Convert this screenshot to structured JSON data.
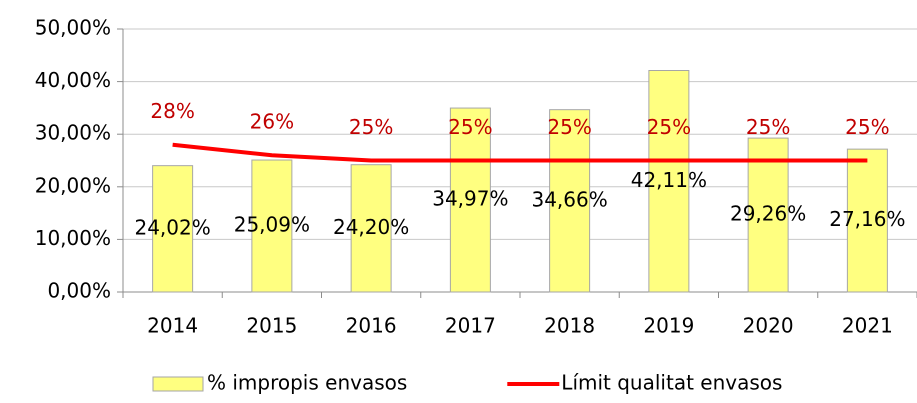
{
  "chart_data": {
    "type": "bar",
    "categories": [
      "2014",
      "2015",
      "2016",
      "2017",
      "2018",
      "2019",
      "2020",
      "2021"
    ],
    "series": [
      {
        "name": "% impropis envasos",
        "type": "bar",
        "color": "#ffff80",
        "edge_color": "#a6a6a6",
        "values": [
          24.02,
          25.09,
          24.2,
          34.97,
          34.66,
          42.11,
          29.26,
          27.16
        ],
        "value_labels": [
          "24,02%",
          "25,09%",
          "24,20%",
          "34,97%",
          "34,66%",
          "42,11%",
          "29,26%",
          "27,16%"
        ],
        "label_color": "#000000"
      },
      {
        "name": "Límit qualitat envasos",
        "type": "line",
        "color": "#ff0000",
        "values": [
          28,
          26,
          25,
          25,
          25,
          25,
          25,
          25
        ],
        "value_labels": [
          "28%",
          "26%",
          "25%",
          "25%",
          "25%",
          "25%",
          "25%",
          "25%"
        ],
        "label_color": "#c00000"
      }
    ],
    "ylim": [
      0,
      50
    ],
    "yticks": [
      {
        "value": 0,
        "label": "0,00%"
      },
      {
        "value": 10,
        "label": "10,00%"
      },
      {
        "value": 20,
        "label": "20,00%"
      },
      {
        "value": 30,
        "label": "30,00%"
      },
      {
        "value": 40,
        "label": "40,00%"
      },
      {
        "value": 50,
        "label": "50,00%"
      }
    ],
    "grid": true,
    "legend": "bottom"
  }
}
